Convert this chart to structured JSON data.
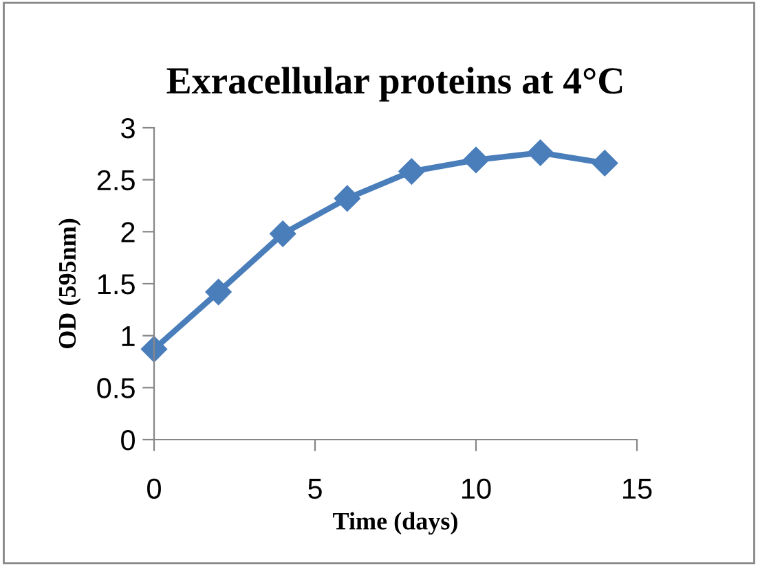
{
  "chart_data": {
    "type": "line",
    "title": "Exracellular proteins at 4°C",
    "xlabel": "Time (days)",
    "ylabel": "OD (595nm)",
    "x": [
      0,
      2,
      4,
      6,
      8,
      10,
      12,
      14
    ],
    "series": [
      {
        "color": "#4a7ebb",
        "values": [
          0.87,
          1.42,
          1.98,
          2.32,
          2.58,
          2.69,
          2.76,
          2.66
        ]
      }
    ],
    "xlim": [
      0,
      15
    ],
    "xticks": [
      0,
      5,
      10,
      15
    ],
    "ylim": [
      0,
      3
    ],
    "yticks": [
      0,
      0.5,
      1,
      1.5,
      2,
      2.5,
      3
    ],
    "marker": "diamond",
    "line_style": "solid",
    "grid": false,
    "legend": false
  }
}
